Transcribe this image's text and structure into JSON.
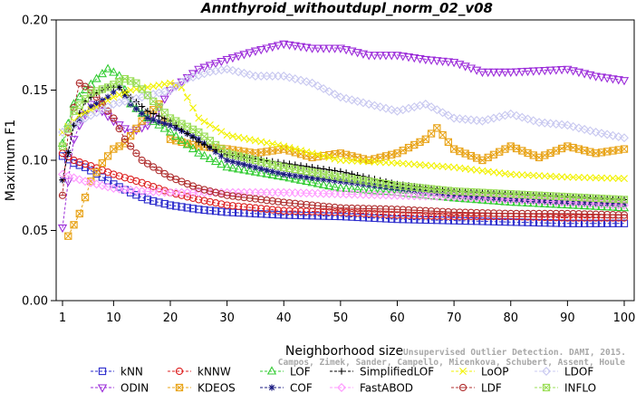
{
  "chart_data": {
    "type": "line",
    "title": "Annthyroid_withoutdupl_norm_02_v08",
    "xlabel": "Neighborhood size",
    "ylabel": "Maximum F1",
    "xlim": [
      1,
      100
    ],
    "ylim": [
      0,
      0.2
    ],
    "xticks": [
      1,
      10,
      20,
      30,
      40,
      50,
      60,
      70,
      80,
      90,
      100
    ],
    "yticks": [
      0.0,
      0.05,
      0.1,
      0.15,
      0.2
    ],
    "ytick_labels": [
      "0.00",
      "0.05",
      "0.10",
      "0.15",
      "0.20"
    ],
    "grid": false,
    "legend_position": "bottom",
    "series": [
      {
        "name": "kNN",
        "color": "#2b2bcc",
        "marker": "square",
        "points": [
          [
            1,
            0.103
          ],
          [
            3,
            0.098
          ],
          [
            5,
            0.095
          ],
          [
            8,
            0.088
          ],
          [
            10,
            0.083
          ],
          [
            13,
            0.077
          ],
          [
            16,
            0.072
          ],
          [
            20,
            0.068
          ],
          [
            25,
            0.065
          ],
          [
            30,
            0.063
          ],
          [
            40,
            0.061
          ],
          [
            50,
            0.06
          ],
          [
            60,
            0.058
          ],
          [
            70,
            0.057
          ],
          [
            80,
            0.056
          ],
          [
            90,
            0.055
          ],
          [
            100,
            0.055
          ]
        ]
      },
      {
        "name": "ODIN",
        "color": "#9b2bd9",
        "marker": "triangle-down",
        "points": [
          [
            1,
            0.052
          ],
          [
            2,
            0.085
          ],
          [
            3,
            0.115
          ],
          [
            4,
            0.125
          ],
          [
            6,
            0.14
          ],
          [
            8,
            0.135
          ],
          [
            10,
            0.128
          ],
          [
            13,
            0.12
          ],
          [
            16,
            0.125
          ],
          [
            20,
            0.15
          ],
          [
            25,
            0.165
          ],
          [
            30,
            0.172
          ],
          [
            35,
            0.178
          ],
          [
            40,
            0.183
          ],
          [
            45,
            0.18
          ],
          [
            50,
            0.18
          ],
          [
            55,
            0.175
          ],
          [
            60,
            0.175
          ],
          [
            65,
            0.172
          ],
          [
            70,
            0.17
          ],
          [
            75,
            0.163
          ],
          [
            80,
            0.163
          ],
          [
            85,
            0.164
          ],
          [
            90,
            0.165
          ],
          [
            95,
            0.16
          ],
          [
            100,
            0.157
          ]
        ]
      },
      {
        "name": "kNNW",
        "color": "#dd2222",
        "marker": "circle",
        "points": [
          [
            1,
            0.105
          ],
          [
            3,
            0.1
          ],
          [
            6,
            0.096
          ],
          [
            10,
            0.09
          ],
          [
            15,
            0.084
          ],
          [
            20,
            0.077
          ],
          [
            25,
            0.072
          ],
          [
            30,
            0.068
          ],
          [
            40,
            0.064
          ],
          [
            50,
            0.063
          ],
          [
            60,
            0.061
          ],
          [
            70,
            0.06
          ],
          [
            80,
            0.06
          ],
          [
            90,
            0.059
          ],
          [
            100,
            0.059
          ]
        ]
      },
      {
        "name": "KDEOS",
        "color": "#e8a317",
        "marker": "square-x",
        "points": [
          [
            2,
            0.046
          ],
          [
            4,
            0.062
          ],
          [
            6,
            0.085
          ],
          [
            8,
            0.098
          ],
          [
            10,
            0.108
          ],
          [
            12,
            0.112
          ],
          [
            15,
            0.128
          ],
          [
            18,
            0.14
          ],
          [
            20,
            0.115
          ],
          [
            25,
            0.11
          ],
          [
            30,
            0.108
          ],
          [
            35,
            0.105
          ],
          [
            40,
            0.108
          ],
          [
            45,
            0.102
          ],
          [
            50,
            0.105
          ],
          [
            55,
            0.1
          ],
          [
            60,
            0.105
          ],
          [
            65,
            0.115
          ],
          [
            67,
            0.123
          ],
          [
            70,
            0.108
          ],
          [
            75,
            0.1
          ],
          [
            80,
            0.11
          ],
          [
            85,
            0.102
          ],
          [
            90,
            0.11
          ],
          [
            95,
            0.105
          ],
          [
            100,
            0.108
          ]
        ]
      },
      {
        "name": "LOF",
        "color": "#33cc33",
        "marker": "triangle-up",
        "points": [
          [
            1,
            0.112
          ],
          [
            3,
            0.14
          ],
          [
            5,
            0.15
          ],
          [
            7,
            0.158
          ],
          [
            9,
            0.165
          ],
          [
            11,
            0.16
          ],
          [
            13,
            0.14
          ],
          [
            16,
            0.13
          ],
          [
            20,
            0.12
          ],
          [
            25,
            0.105
          ],
          [
            30,
            0.095
          ],
          [
            40,
            0.088
          ],
          [
            50,
            0.08
          ],
          [
            60,
            0.077
          ],
          [
            70,
            0.073
          ],
          [
            80,
            0.07
          ],
          [
            90,
            0.068
          ],
          [
            100,
            0.066
          ]
        ]
      },
      {
        "name": "COF",
        "color": "#1a1a80",
        "marker": "asterisk",
        "points": [
          [
            1,
            0.086
          ],
          [
            3,
            0.125
          ],
          [
            6,
            0.138
          ],
          [
            9,
            0.145
          ],
          [
            11,
            0.152
          ],
          [
            13,
            0.14
          ],
          [
            16,
            0.13
          ],
          [
            20,
            0.125
          ],
          [
            25,
            0.115
          ],
          [
            30,
            0.1
          ],
          [
            35,
            0.095
          ],
          [
            40,
            0.09
          ],
          [
            50,
            0.085
          ],
          [
            60,
            0.08
          ],
          [
            70,
            0.075
          ],
          [
            80,
            0.072
          ],
          [
            90,
            0.07
          ],
          [
            100,
            0.069
          ]
        ]
      },
      {
        "name": "SimplifiedLOF",
        "color": "#000000",
        "marker": "plus",
        "points": [
          [
            1,
            0.086
          ],
          [
            3,
            0.125
          ],
          [
            5,
            0.142
          ],
          [
            7,
            0.148
          ],
          [
            9,
            0.152
          ],
          [
            11,
            0.152
          ],
          [
            13,
            0.145
          ],
          [
            16,
            0.135
          ],
          [
            20,
            0.128
          ],
          [
            25,
            0.113
          ],
          [
            30,
            0.104
          ],
          [
            40,
            0.098
          ],
          [
            50,
            0.092
          ],
          [
            60,
            0.083
          ],
          [
            70,
            0.078
          ],
          [
            80,
            0.076
          ],
          [
            90,
            0.074
          ],
          [
            100,
            0.072
          ]
        ]
      },
      {
        "name": "FastABOD",
        "color": "#ff99ff",
        "marker": "diamond",
        "points": [
          [
            1,
            0.09
          ],
          [
            5,
            0.085
          ],
          [
            10,
            0.08
          ],
          [
            15,
            0.078
          ],
          [
            20,
            0.077
          ],
          [
            30,
            0.077
          ],
          [
            40,
            0.077
          ],
          [
            50,
            0.076
          ],
          [
            60,
            0.075
          ],
          [
            70,
            0.074
          ],
          [
            80,
            0.072
          ],
          [
            90,
            0.07
          ],
          [
            100,
            0.068
          ]
        ]
      },
      {
        "name": "LoOP",
        "color": "#f2f200",
        "marker": "x",
        "points": [
          [
            1,
            0.12
          ],
          [
            4,
            0.132
          ],
          [
            7,
            0.138
          ],
          [
            10,
            0.145
          ],
          [
            13,
            0.15
          ],
          [
            16,
            0.152
          ],
          [
            20,
            0.155
          ],
          [
            22,
            0.152
          ],
          [
            25,
            0.13
          ],
          [
            30,
            0.118
          ],
          [
            40,
            0.11
          ],
          [
            50,
            0.1
          ],
          [
            60,
            0.098
          ],
          [
            70,
            0.095
          ],
          [
            80,
            0.09
          ],
          [
            90,
            0.088
          ],
          [
            100,
            0.087
          ]
        ]
      },
      {
        "name": "LDF",
        "color": "#b03030",
        "marker": "circle-dot",
        "points": [
          [
            1,
            0.075
          ],
          [
            2,
            0.12
          ],
          [
            4,
            0.155
          ],
          [
            6,
            0.15
          ],
          [
            8,
            0.14
          ],
          [
            10,
            0.13
          ],
          [
            12,
            0.115
          ],
          [
            15,
            0.1
          ],
          [
            20,
            0.088
          ],
          [
            25,
            0.08
          ],
          [
            30,
            0.075
          ],
          [
            40,
            0.07
          ],
          [
            50,
            0.066
          ],
          [
            60,
            0.065
          ],
          [
            70,
            0.063
          ],
          [
            80,
            0.062
          ],
          [
            90,
            0.062
          ],
          [
            100,
            0.061
          ]
        ]
      },
      {
        "name": "LDOF",
        "color": "#c8c8f0",
        "marker": "diamond",
        "points": [
          [
            1,
            0.12
          ],
          [
            5,
            0.13
          ],
          [
            10,
            0.14
          ],
          [
            15,
            0.145
          ],
          [
            20,
            0.15
          ],
          [
            23,
            0.158
          ],
          [
            27,
            0.163
          ],
          [
            30,
            0.165
          ],
          [
            35,
            0.16
          ],
          [
            40,
            0.16
          ],
          [
            45,
            0.155
          ],
          [
            50,
            0.145
          ],
          [
            55,
            0.14
          ],
          [
            60,
            0.135
          ],
          [
            65,
            0.14
          ],
          [
            70,
            0.13
          ],
          [
            75,
            0.128
          ],
          [
            80,
            0.133
          ],
          [
            85,
            0.127
          ],
          [
            90,
            0.125
          ],
          [
            95,
            0.12
          ],
          [
            100,
            0.116
          ]
        ]
      },
      {
        "name": "INFLO",
        "color": "#99dd55",
        "marker": "square-x",
        "points": [
          [
            1,
            0.11
          ],
          [
            3,
            0.135
          ],
          [
            6,
            0.148
          ],
          [
            9,
            0.152
          ],
          [
            12,
            0.158
          ],
          [
            14,
            0.155
          ],
          [
            17,
            0.142
          ],
          [
            20,
            0.13
          ],
          [
            25,
            0.12
          ],
          [
            30,
            0.105
          ],
          [
            35,
            0.1
          ],
          [
            40,
            0.095
          ],
          [
            50,
            0.088
          ],
          [
            60,
            0.082
          ],
          [
            70,
            0.078
          ],
          [
            80,
            0.076
          ],
          [
            90,
            0.074
          ],
          [
            100,
            0.072
          ]
        ]
      }
    ]
  },
  "watermark": {
    "line1": "Unsupervised Outlier Detection. DAMI, 2015.",
    "line2": "Campos, Zimek, Sander, Campello, Micenkova, Schubert, Assent, Houle"
  }
}
